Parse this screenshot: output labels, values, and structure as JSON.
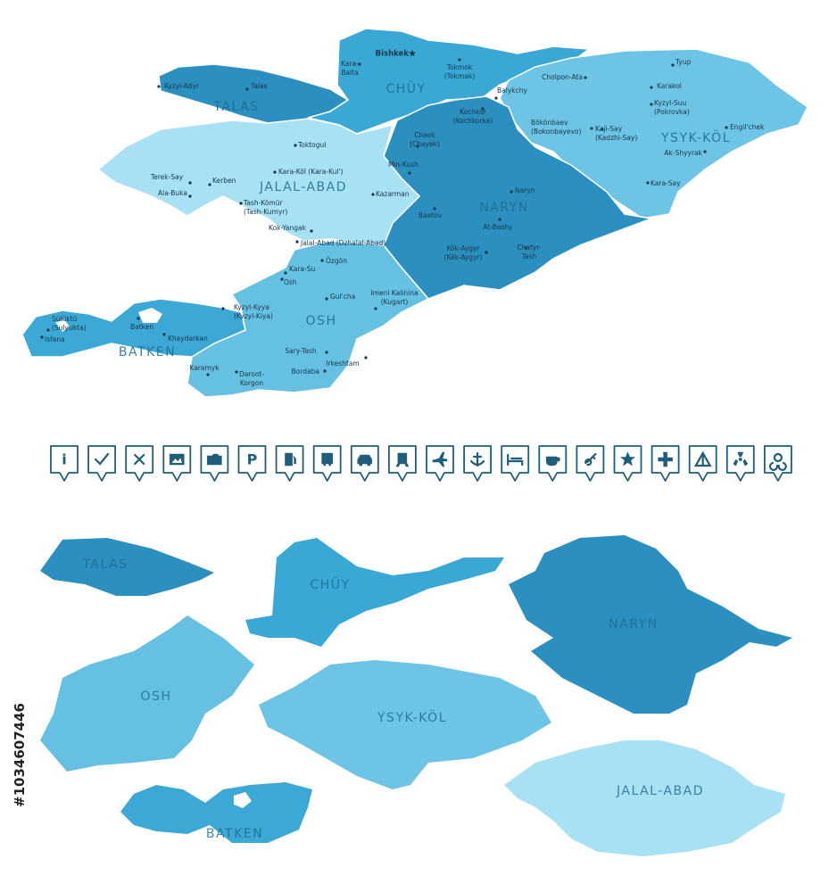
{
  "top_map": {
    "regions": [
      {
        "name": "TALAS",
        "color": "#2b8fbf"
      },
      {
        "name": "CHÜY",
        "color": "#3aa8d5"
      },
      {
        "name": "YSYK-KÖL",
        "color": "#6dc4e4"
      },
      {
        "name": "NARYN",
        "color": "#2b8fbf"
      },
      {
        "name": "JALAL-ABAD",
        "color": "#a8e0f4"
      },
      {
        "name": "OSH",
        "color": "#65c0e2"
      },
      {
        "name": "BATKEN",
        "color": "#3ba8d6"
      }
    ],
    "cities": [
      {
        "lines": [
          "Bishkek"
        ]
      },
      {
        "lines": [
          "Kara-",
          "Balta"
        ]
      },
      {
        "lines": [
          "Tokmok",
          "(Tokmak)"
        ]
      },
      {
        "lines": [
          "Kyzyl-Adyr"
        ]
      },
      {
        "lines": [
          "Talas"
        ]
      },
      {
        "lines": [
          "Cholpon-Ata"
        ]
      },
      {
        "lines": [
          "Tyup"
        ]
      },
      {
        "lines": [
          "Karakol"
        ]
      },
      {
        "lines": [
          "Balykchy"
        ]
      },
      {
        "lines": [
          "Kochkor",
          "(Kochkorka)"
        ]
      },
      {
        "lines": [
          "Kyzyl-Suu",
          "(Pokrovka)"
        ]
      },
      {
        "lines": [
          "Bökönbaev",
          "(Bokonbayevo)"
        ]
      },
      {
        "lines": [
          "Kaji-Say",
          "(Kadzhi-Say)"
        ]
      },
      {
        "lines": [
          "Engil'chek"
        ]
      },
      {
        "lines": [
          "Toktogul"
        ]
      },
      {
        "lines": [
          "Chaek",
          "(Chayek)"
        ]
      },
      {
        "lines": [
          "Ak-Shyyrak"
        ]
      },
      {
        "lines": [
          "Min-Kush"
        ]
      },
      {
        "lines": [
          "Terek-Say"
        ]
      },
      {
        "lines": [
          "Kara-Köl (Kara-Kul')"
        ]
      },
      {
        "lines": [
          "Kerben"
        ]
      },
      {
        "lines": [
          "Ala-Buka"
        ]
      },
      {
        "lines": [
          "Kazarman"
        ]
      },
      {
        "lines": [
          "Naryn"
        ]
      },
      {
        "lines": [
          "Kara-Say"
        ]
      },
      {
        "lines": [
          "Tash-Kömür",
          "(Tash-Kumyr)"
        ]
      },
      {
        "lines": [
          "Baetov"
        ]
      },
      {
        "lines": [
          "At-Bashy"
        ]
      },
      {
        "lines": [
          "Kok-Yangak"
        ]
      },
      {
        "lines": [
          "Jalal-Abad (Dzhalal-Abad)"
        ]
      },
      {
        "lines": [
          "Chatyr-",
          "Tash"
        ]
      },
      {
        "lines": [
          "Kök-Aygyr",
          "(Këk-Aygyr)"
        ]
      },
      {
        "lines": [
          "Özgön"
        ]
      },
      {
        "lines": [
          "Kara-Su"
        ]
      },
      {
        "lines": [
          "Osh"
        ]
      },
      {
        "lines": [
          "Gul'cha"
        ]
      },
      {
        "lines": [
          "Imeni Kalinina",
          "(Kugart)"
        ]
      },
      {
        "lines": [
          "Kyzyl-Kyya",
          "(Kyzyl-Kiya)"
        ]
      },
      {
        "lines": [
          "Sülüktü",
          "(Sulyukta)"
        ]
      },
      {
        "lines": [
          "Isfana"
        ]
      },
      {
        "lines": [
          "Batken"
        ]
      },
      {
        "lines": [
          "Khaydarkan"
        ]
      },
      {
        "lines": [
          "Sary-Tash"
        ]
      },
      {
        "lines": [
          "Irkeshtam"
        ]
      },
      {
        "lines": [
          "Bordaba"
        ]
      },
      {
        "lines": [
          "Karamyk"
        ]
      },
      {
        "lines": [
          "Daroot-",
          "Korgon"
        ]
      }
    ]
  },
  "icon_letters": {
    "info": "i",
    "parking": "P"
  },
  "pieces": [
    {
      "name": "TALAS",
      "color": "#2b8fbf"
    },
    {
      "name": "CHÜY",
      "color": "#3aa8d5"
    },
    {
      "name": "NARYN",
      "color": "#2b8fbf"
    },
    {
      "name": "OSH",
      "color": "#65c0e2"
    },
    {
      "name": "YSYK-KÖL",
      "color": "#6dc4e4"
    },
    {
      "name": "JALAL-ABAD",
      "color": "#a8e0f4"
    },
    {
      "name": "BATKEN",
      "color": "#3ba8d6"
    }
  ],
  "stock_id": "#1034607446"
}
